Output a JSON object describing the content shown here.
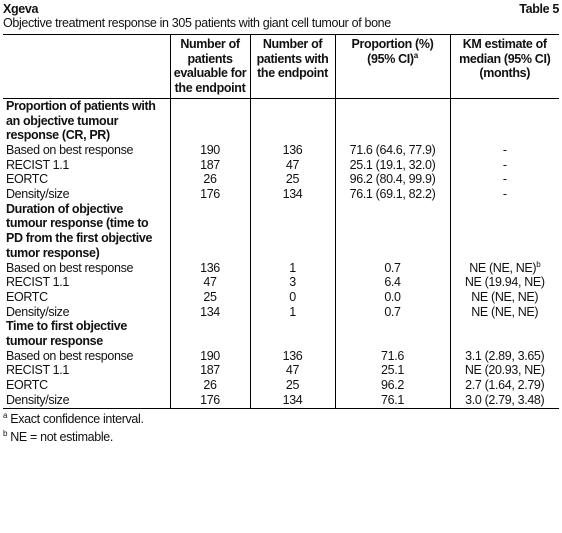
{
  "header": {
    "title": "Xgeva",
    "table_label": "Table 5",
    "caption": "Objective treatment response in 305 patients with giant cell tumour of bone"
  },
  "table": {
    "columns": [
      {
        "text": "Number of patients evaluable for the endpoint"
      },
      {
        "text": "Number of patients with the endpoint"
      },
      {
        "text": "Proportion (%) (95% CI)",
        "note": "a"
      },
      {
        "text": "KM estimate of median (95% CI) (months)"
      }
    ],
    "sections": [
      {
        "heading": "Proportion of patients with an objective tumour response (CR, PR)",
        "rows": [
          {
            "cells": [
              "Based on best response",
              "190",
              "136",
              "71.6 (64.6, 77.9)",
              "-"
            ]
          },
          {
            "cells": [
              "RECIST 1.1",
              "187",
              "47",
              "25.1 (19.1, 32.0)",
              "-"
            ]
          },
          {
            "cells": [
              "EORTC",
              "26",
              "25",
              "96.2 (80.4, 99.9)",
              "-"
            ]
          },
          {
            "cells": [
              "Density/size",
              "176",
              "134",
              "76.1 (69.1, 82.2)",
              "-"
            ]
          }
        ]
      },
      {
        "heading": "Duration of objective tumour response (time to PD from the first objective tumor response)",
        "rows": [
          {
            "cells": [
              "Based on best response",
              "136",
              "1",
              "0.7",
              "NE (NE, NE)"
            ],
            "note": "b"
          },
          {
            "cells": [
              "RECIST 1.1",
              "47",
              "3",
              "6.4",
              "NE (19.94, NE)"
            ]
          },
          {
            "cells": [
              "EORTC",
              "25",
              "0",
              "0.0",
              "NE (NE, NE)"
            ]
          },
          {
            "cells": [
              "Density/size",
              "134",
              "1",
              "0.7",
              "NE (NE, NE)"
            ]
          }
        ]
      },
      {
        "heading": "Time to first objective tumour response",
        "rows": [
          {
            "cells": [
              "Based on best response",
              "190",
              "136",
              "71.6",
              "3.1 (2.89, 3.65)"
            ]
          },
          {
            "cells": [
              "RECIST 1.1",
              "187",
              "47",
              "25.1",
              "NE (20.93, NE)"
            ]
          },
          {
            "cells": [
              "EORTC",
              "26",
              "25",
              "96.2",
              "2.7 (1.64, 2.79)"
            ]
          },
          {
            "cells": [
              "Density/size",
              "176",
              "134",
              "76.1",
              "3.0 (2.79, 3.48)"
            ]
          }
        ]
      }
    ]
  },
  "footnotes": [
    {
      "mark": "a",
      "text": "Exact confidence interval."
    },
    {
      "mark": "b",
      "text": "NE = not estimable."
    }
  ]
}
